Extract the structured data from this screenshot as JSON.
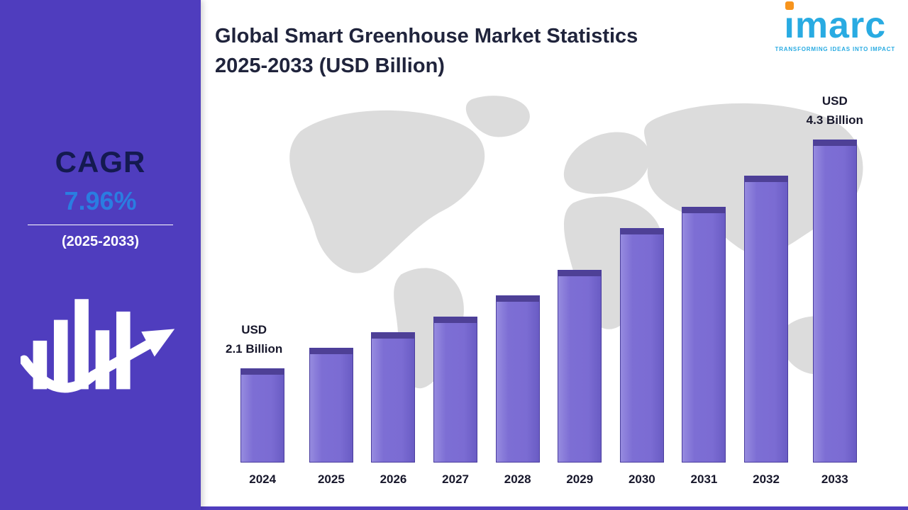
{
  "sidebar": {
    "cagr_label": "CAGR",
    "cagr_value": "7.96%",
    "cagr_period": "(2025-2033)"
  },
  "header": {
    "title_line1": "Global Smart Greenhouse Market Statistics",
    "title_line2": "2025-2033 (USD Billion)"
  },
  "logo": {
    "name": "ımarc",
    "tagline": "TRANSFORMING IDEAS INTO IMPACT"
  },
  "colors": {
    "sidebar_purple": "#4f3dbe",
    "bar_fill": "#7b6cd3",
    "bar_cap": "#4e4096",
    "accent_blue": "#2a7de1",
    "logo_cyan": "#29abe2",
    "logo_orange": "#f7941d",
    "map_gray": "#dcdcdc",
    "title_color": "#20243c"
  },
  "chart_data": {
    "type": "bar",
    "title": "Global Smart Greenhouse Market Statistics 2025-2033 (USD Billion)",
    "unit": "USD Billion",
    "xlabel": "",
    "ylabel": "",
    "categories": [
      "2024",
      "2025",
      "2026",
      "2027",
      "2028",
      "2029",
      "2030",
      "2031",
      "2032",
      "2033"
    ],
    "values": [
      2.1,
      2.3,
      2.45,
      2.6,
      2.8,
      3.05,
      3.45,
      3.65,
      3.95,
      4.3
    ],
    "data_labels": [
      {
        "index": 0,
        "line1": "USD",
        "line2": "2.1 Billion"
      },
      {
        "index": 9,
        "line1": "USD",
        "line2": "4.3 Billion"
      }
    ],
    "cagr": "7.96%",
    "cagr_period": "2025-2033",
    "grid": false,
    "legend": false
  }
}
